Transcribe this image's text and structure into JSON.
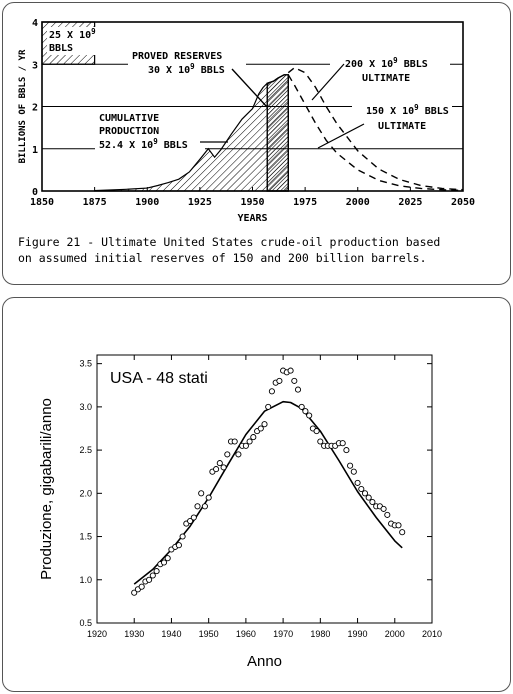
{
  "chart_data": [
    {
      "type": "area",
      "ylabel": "BILLIONS OF BBLS / YR",
      "xlabel": "YEARS",
      "xlim": [
        1850,
        2050
      ],
      "ylim": [
        0,
        4
      ],
      "x_ticks": [
        "1850",
        "1875",
        "1900",
        "1925",
        "1950",
        "1975",
        "2000",
        "2025",
        "2050"
      ],
      "y_ticks": [
        "0",
        "1",
        "2",
        "3",
        "4"
      ],
      "grid": true,
      "historical_production": {
        "x": [
          1875,
          1890,
          1900,
          1905,
          1910,
          1915,
          1920,
          1925,
          1929,
          1932,
          1935,
          1940,
          1945,
          1950,
          1953,
          1955,
          1957,
          1960,
          1962,
          1965,
          1967
        ],
        "y": [
          0.01,
          0.04,
          0.07,
          0.13,
          0.2,
          0.28,
          0.45,
          0.75,
          1.0,
          0.8,
          0.98,
          1.35,
          1.7,
          1.95,
          2.3,
          2.45,
          2.55,
          2.6,
          2.67,
          2.75,
          2.75
        ]
      },
      "proved_reserves_band": {
        "x_start": 1957,
        "x_end": 1967
      },
      "ultimate_200": {
        "x": [
          1967,
          1970,
          1975,
          1980,
          1985,
          1990,
          2000,
          2010,
          2020,
          2030,
          2040,
          2050
        ],
        "y": [
          2.8,
          2.92,
          2.8,
          2.45,
          2.0,
          1.6,
          0.95,
          0.52,
          0.27,
          0.13,
          0.06,
          0.03
        ]
      },
      "ultimate_150": {
        "x": [
          1967,
          1970,
          1975,
          1980,
          1985,
          1990,
          2000,
          2010,
          2020,
          2030,
          2040,
          2050
        ],
        "y": [
          2.75,
          2.5,
          2.05,
          1.6,
          1.2,
          0.9,
          0.5,
          0.25,
          0.12,
          0.06,
          0.03,
          0.01
        ]
      },
      "box_label": [
        "25 X 10",
        "9",
        "BBLS"
      ],
      "annotations": {
        "proved": [
          "PROVED RESERVES",
          "30 X 10",
          "9",
          " BBLS"
        ],
        "cumulative": [
          "CUMULATIVE",
          "PRODUCTION",
          "52.4 X 10",
          "9",
          " BBLS"
        ],
        "u200": [
          "200 X 10",
          "9",
          " BBLS",
          "ULTIMATE"
        ],
        "u150": [
          "150 X 10",
          "9",
          " BBLS",
          "ULTIMATE"
        ]
      },
      "caption": [
        "Figure 21 - Ultimate United States crude-oil production based",
        "on assumed initial reserves of 150 and 200 billion barrels."
      ]
    },
    {
      "type": "scatter",
      "title": "USA - 48 stati",
      "xlabel": "Anno",
      "ylabel": "Produzione, gigabarili/anno",
      "xlim": [
        1920,
        2010
      ],
      "ylim": [
        0.5,
        3.6
      ],
      "x_ticks": [
        "1920",
        "1930",
        "1940",
        "1950",
        "1960",
        "1970",
        "1980",
        "1990",
        "2000",
        "2010"
      ],
      "y_ticks": [
        "0.5",
        "1.0",
        "1.5",
        "2.0",
        "2.5",
        "3.0",
        "3.5"
      ],
      "points": [
        [
          1930,
          0.85
        ],
        [
          1931,
          0.89
        ],
        [
          1932,
          0.92
        ],
        [
          1933,
          0.98
        ],
        [
          1934,
          1.0
        ],
        [
          1935,
          1.05
        ],
        [
          1936,
          1.1
        ],
        [
          1937,
          1.18
        ],
        [
          1938,
          1.2
        ],
        [
          1939,
          1.25
        ],
        [
          1940,
          1.35
        ],
        [
          1941,
          1.38
        ],
        [
          1942,
          1.4
        ],
        [
          1943,
          1.5
        ],
        [
          1944,
          1.65
        ],
        [
          1945,
          1.68
        ],
        [
          1946,
          1.72
        ],
        [
          1947,
          1.85
        ],
        [
          1948,
          2.0
        ],
        [
          1949,
          1.85
        ],
        [
          1950,
          1.95
        ],
        [
          1951,
          2.25
        ],
        [
          1952,
          2.28
        ],
        [
          1953,
          2.35
        ],
        [
          1954,
          2.3
        ],
        [
          1955,
          2.45
        ],
        [
          1956,
          2.6
        ],
        [
          1957,
          2.6
        ],
        [
          1958,
          2.45
        ],
        [
          1959,
          2.55
        ],
        [
          1960,
          2.55
        ],
        [
          1961,
          2.6
        ],
        [
          1962,
          2.65
        ],
        [
          1963,
          2.72
        ],
        [
          1964,
          2.75
        ],
        [
          1965,
          2.8
        ],
        [
          1966,
          3.0
        ],
        [
          1967,
          3.18
        ],
        [
          1968,
          3.28
        ],
        [
          1969,
          3.3
        ],
        [
          1970,
          3.42
        ],
        [
          1971,
          3.4
        ],
        [
          1972,
          3.42
        ],
        [
          1973,
          3.3
        ],
        [
          1974,
          3.2
        ],
        [
          1975,
          3.0
        ],
        [
          1976,
          2.95
        ],
        [
          1977,
          2.9
        ],
        [
          1978,
          2.75
        ],
        [
          1979,
          2.72
        ],
        [
          1980,
          2.6
        ],
        [
          1981,
          2.55
        ],
        [
          1982,
          2.55
        ],
        [
          1983,
          2.55
        ],
        [
          1984,
          2.55
        ],
        [
          1985,
          2.58
        ],
        [
          1986,
          2.58
        ],
        [
          1987,
          2.5
        ],
        [
          1988,
          2.32
        ],
        [
          1989,
          2.25
        ],
        [
          1990,
          2.12
        ],
        [
          1991,
          2.05
        ],
        [
          1992,
          2.0
        ],
        [
          1993,
          1.95
        ],
        [
          1994,
          1.9
        ],
        [
          1995,
          1.85
        ],
        [
          1996,
          1.85
        ],
        [
          1997,
          1.82
        ],
        [
          1998,
          1.75
        ],
        [
          1999,
          1.65
        ],
        [
          2000,
          1.63
        ],
        [
          2001,
          1.63
        ],
        [
          2002,
          1.55
        ]
      ],
      "fit_curve": {
        "x": [
          1930,
          1935,
          1940,
          1945,
          1950,
          1955,
          1960,
          1965,
          1970,
          1972,
          1975,
          1980,
          1985,
          1990,
          1995,
          2000,
          2002
        ],
        "y": [
          0.95,
          1.12,
          1.35,
          1.62,
          1.95,
          2.32,
          2.68,
          2.95,
          3.06,
          3.05,
          2.98,
          2.72,
          2.38,
          2.02,
          1.72,
          1.45,
          1.37
        ]
      }
    }
  ]
}
